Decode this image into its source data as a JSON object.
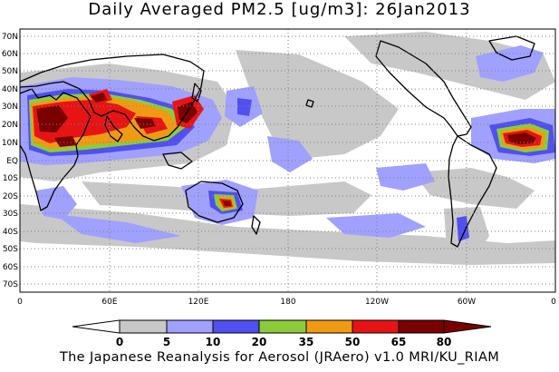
{
  "title": "Daily Averaged PM2.5 [ug/m3]: 26Jan2013",
  "footer": "The Japanese Reanalysis for Aerosol (JRAero) v1.0 MRI/KU_RIAM",
  "map": {
    "projection": "equirectangular, 0-360E",
    "lat_labels": [
      "70N",
      "60N",
      "50N",
      "40N",
      "30N",
      "20N",
      "10N",
      "EQ",
      "10S",
      "20S",
      "30S",
      "40S",
      "50S",
      "60S",
      "70S"
    ],
    "lon_labels": [
      "0",
      "60E",
      "120E",
      "180",
      "120W",
      "60W",
      "0"
    ],
    "grid": "dotted"
  },
  "colorbar": {
    "labels": [
      "0",
      "5",
      "10",
      "20",
      "35",
      "50",
      "65",
      "80"
    ],
    "colors": [
      "#ffffff",
      "#c8c8c8",
      "#a0a0ff",
      "#5050f0",
      "#8ccc3a",
      "#f09a14",
      "#e61414",
      "#7a0000"
    ]
  }
}
